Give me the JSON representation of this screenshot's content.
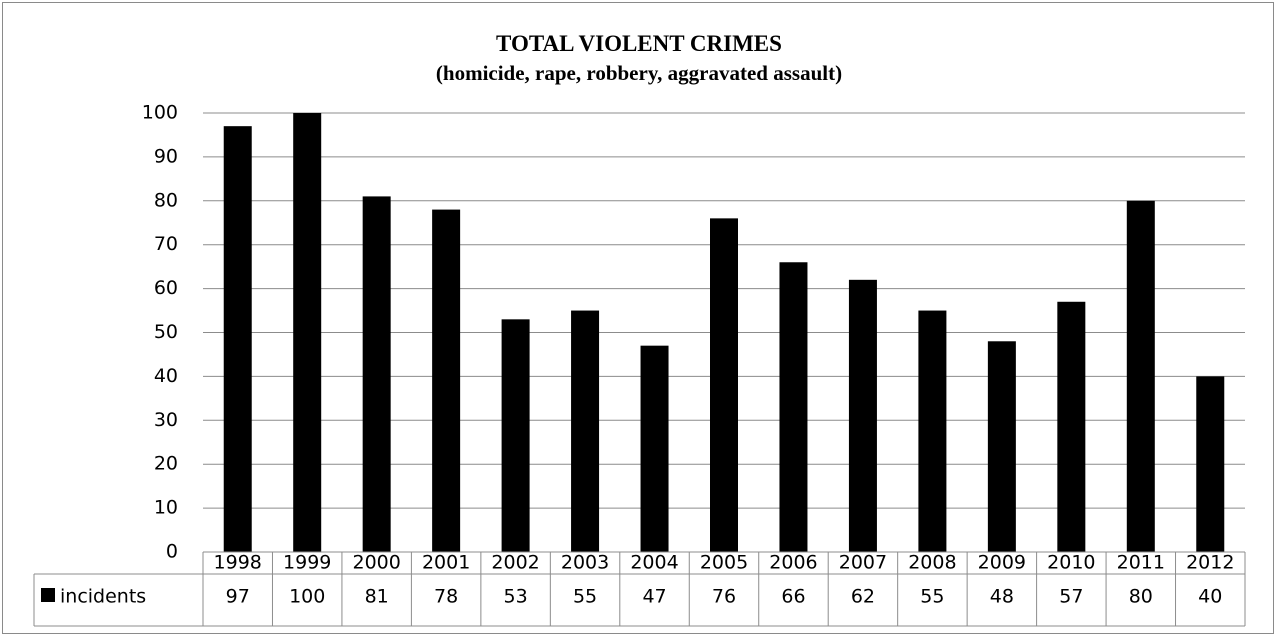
{
  "chart_data": {
    "type": "bar",
    "title": "TOTAL VIOLENT CRIMES",
    "subtitle": "(homicide, rape, robbery, aggravated assault)",
    "categories": [
      "1998",
      "1999",
      "2000",
      "2001",
      "2002",
      "2003",
      "2004",
      "2005",
      "2006",
      "2007",
      "2008",
      "2009",
      "2010",
      "2011",
      "2012"
    ],
    "series": [
      {
        "name": "incidents",
        "values": [
          97,
          100,
          81,
          78,
          53,
          55,
          47,
          76,
          66,
          62,
          55,
          48,
          57,
          80,
          40
        ]
      }
    ],
    "ylim": [
      0,
      100
    ],
    "yticks": [
      "0",
      "10",
      "20",
      "30",
      "40",
      "50",
      "60",
      "70",
      "80",
      "90",
      "100"
    ],
    "grid": true,
    "legend": "data-table",
    "colors": {
      "bar": "#000000",
      "grid": "#8c8c8c"
    }
  }
}
